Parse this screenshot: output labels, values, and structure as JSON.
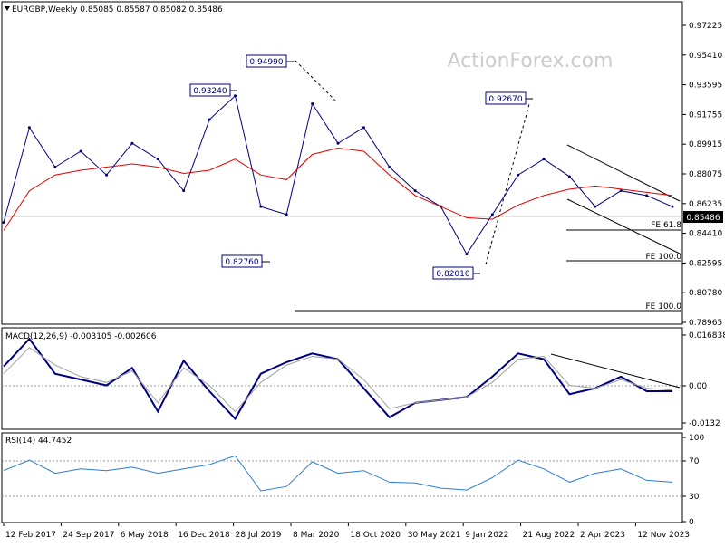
{
  "header": {
    "symbol_line": "EURGBP,Weekly  0.85085 0.85587 0.85082 0.85486",
    "watermark": "ActionForex.com"
  },
  "chart_data": [
    {
      "type": "line",
      "panel": "price",
      "title": "EURGBP,Weekly  0.85085 0.85587 0.85082 0.85486",
      "ylim": [
        0.7813,
        0.9838
      ],
      "y_ticks": [
        "0.97225",
        "0.95410",
        "0.93595",
        "0.91755",
        "0.89915",
        "0.88075",
        "0.86235",
        "0.84410",
        "0.82595",
        "0.80780",
        "0.78965"
      ],
      "current_price": "0.85486",
      "x_labels": [
        "12 Feb 2017",
        "24 Sep 2017",
        "6 May 2018",
        "16 Dec 2018",
        "28 Jul 2019",
        "8 Mar 2020",
        "18 Oct 2020",
        "30 May 2021",
        "9 Jan 2022",
        "21 Aug 2022",
        "2 Apr 2023",
        "12 Nov 2023"
      ],
      "x": [
        "2017-02",
        "2017-07",
        "2017-09",
        "2018-01",
        "2018-05",
        "2018-09",
        "2018-12",
        "2019-04",
        "2019-06",
        "2019-08",
        "2019-10",
        "2020-03",
        "2020-05",
        "2020-08",
        "2020-10",
        "2021-01",
        "2021-05",
        "2021-09",
        "2022-02",
        "2022-05",
        "2022-09",
        "2022-12",
        "2023-02",
        "2023-06",
        "2023-09",
        "2023-12",
        "2024-02"
      ],
      "series": [
        {
          "values": [
            0.845,
            0.905,
            0.88,
            0.89,
            0.875,
            0.895,
            0.885,
            0.865,
            0.91,
            0.925,
            0.855,
            0.85,
            0.92,
            0.895,
            0.905,
            0.88,
            0.865,
            0.855,
            0.825,
            0.85,
            0.875,
            0.885,
            0.874,
            0.855,
            0.865,
            0.862,
            0.855
          ]
        },
        {
          "values": [
            0.84,
            0.865,
            0.875,
            0.878,
            0.88,
            0.882,
            0.88,
            0.876,
            0.878,
            0.885,
            0.875,
            0.872,
            0.888,
            0.892,
            0.89,
            0.875,
            0.862,
            0.855,
            0.848,
            0.847,
            0.856,
            0.862,
            0.866,
            0.868,
            0.866,
            0.864,
            0.862
          ]
        }
      ],
      "annotations": [
        "0.94990",
        "0.93240",
        "0.92670",
        "0.82760",
        "0.82010",
        "FE 61.8",
        "FE 100.0",
        "FE 100.0"
      ]
    },
    {
      "type": "line",
      "panel": "macd",
      "title": "MACD(12,26,9) -0.003105 -0.002606",
      "ylim": [
        -0.0158,
        0.0185
      ],
      "y_ticks": [
        "0.016838",
        "0.00",
        "-0.0132"
      ],
      "x": [
        "2017-02",
        "2017-07",
        "2017-09",
        "2018-01",
        "2018-05",
        "2018-09",
        "2018-12",
        "2019-04",
        "2019-06",
        "2019-08",
        "2019-10",
        "2020-03",
        "2020-05",
        "2020-08",
        "2020-10",
        "2021-01",
        "2021-05",
        "2021-09",
        "2022-02",
        "2022-05",
        "2022-09",
        "2022-12",
        "2023-02",
        "2023-06",
        "2023-09",
        "2023-12",
        "2024-02"
      ],
      "series": [
        {
          "values": [
            0.0055,
            0.015,
            0.003,
            0.001,
            -0.001,
            0.005,
            -0.01,
            0.0075,
            -0.003,
            -0.0125,
            0.003,
            0.007,
            0.01,
            0.008,
            -0.002,
            -0.012,
            -0.007,
            -0.006,
            -0.005,
            0.002,
            0.01,
            0.008,
            -0.004,
            -0.002,
            0.002,
            -0.003,
            -0.003
          ]
        },
        {
          "values": [
            0.003,
            0.012,
            0.006,
            0.002,
            0.0,
            0.004,
            -0.007,
            0.005,
            -0.001,
            -0.01,
            0.0,
            0.006,
            0.009,
            0.008,
            0.001,
            -0.009,
            -0.007,
            -0.006,
            -0.005,
            0.0,
            0.008,
            0.009,
            -0.001,
            -0.002,
            0.001,
            -0.002,
            -0.0026
          ]
        }
      ]
    },
    {
      "type": "line",
      "panel": "rsi",
      "title": "RSI(14) 44.7452",
      "ylim": [
        0,
        100
      ],
      "y_ticks": [
        "100",
        "70",
        "30",
        "0"
      ],
      "x": [
        "2017-02",
        "2017-07",
        "2017-09",
        "2018-01",
        "2018-05",
        "2018-09",
        "2018-12",
        "2019-04",
        "2019-06",
        "2019-08",
        "2019-10",
        "2020-03",
        "2020-05",
        "2020-08",
        "2020-10",
        "2021-01",
        "2021-05",
        "2021-09",
        "2022-02",
        "2022-05",
        "2022-09",
        "2022-12",
        "2023-02",
        "2023-06",
        "2023-09",
        "2023-12",
        "2024-02"
      ],
      "series": [
        {
          "values": [
            58,
            70,
            55,
            60,
            58,
            62,
            55,
            60,
            65,
            75,
            35,
            40,
            68,
            55,
            58,
            45,
            44,
            38,
            36,
            50,
            70,
            60,
            45,
            55,
            60,
            47,
            45
          ]
        }
      ]
    }
  ]
}
